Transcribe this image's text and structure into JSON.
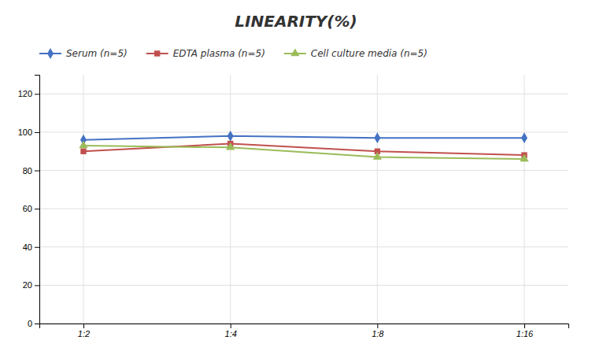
{
  "chart_data": {
    "type": "line",
    "title": "LINEARITY(%)",
    "categories": [
      "1:2",
      "1:4",
      "1:8",
      "1:16"
    ],
    "series": [
      {
        "name": "Serum (n=5)",
        "color": "#4472C4",
        "marker": "diamond",
        "values": [
          96,
          98,
          97,
          97
        ]
      },
      {
        "name": "EDTA plasma (n=5)",
        "color": "#C0504D",
        "marker": "square",
        "values": [
          90,
          94,
          90,
          88
        ]
      },
      {
        "name": "Cell culture media (n=5)",
        "color": "#9BBB59",
        "marker": "triangle",
        "values": [
          93,
          92,
          87,
          86
        ]
      }
    ],
    "ylim": [
      0,
      130
    ],
    "yticks": [
      0,
      20,
      40,
      60,
      80,
      100,
      120
    ],
    "grid": true,
    "legend": "top"
  }
}
